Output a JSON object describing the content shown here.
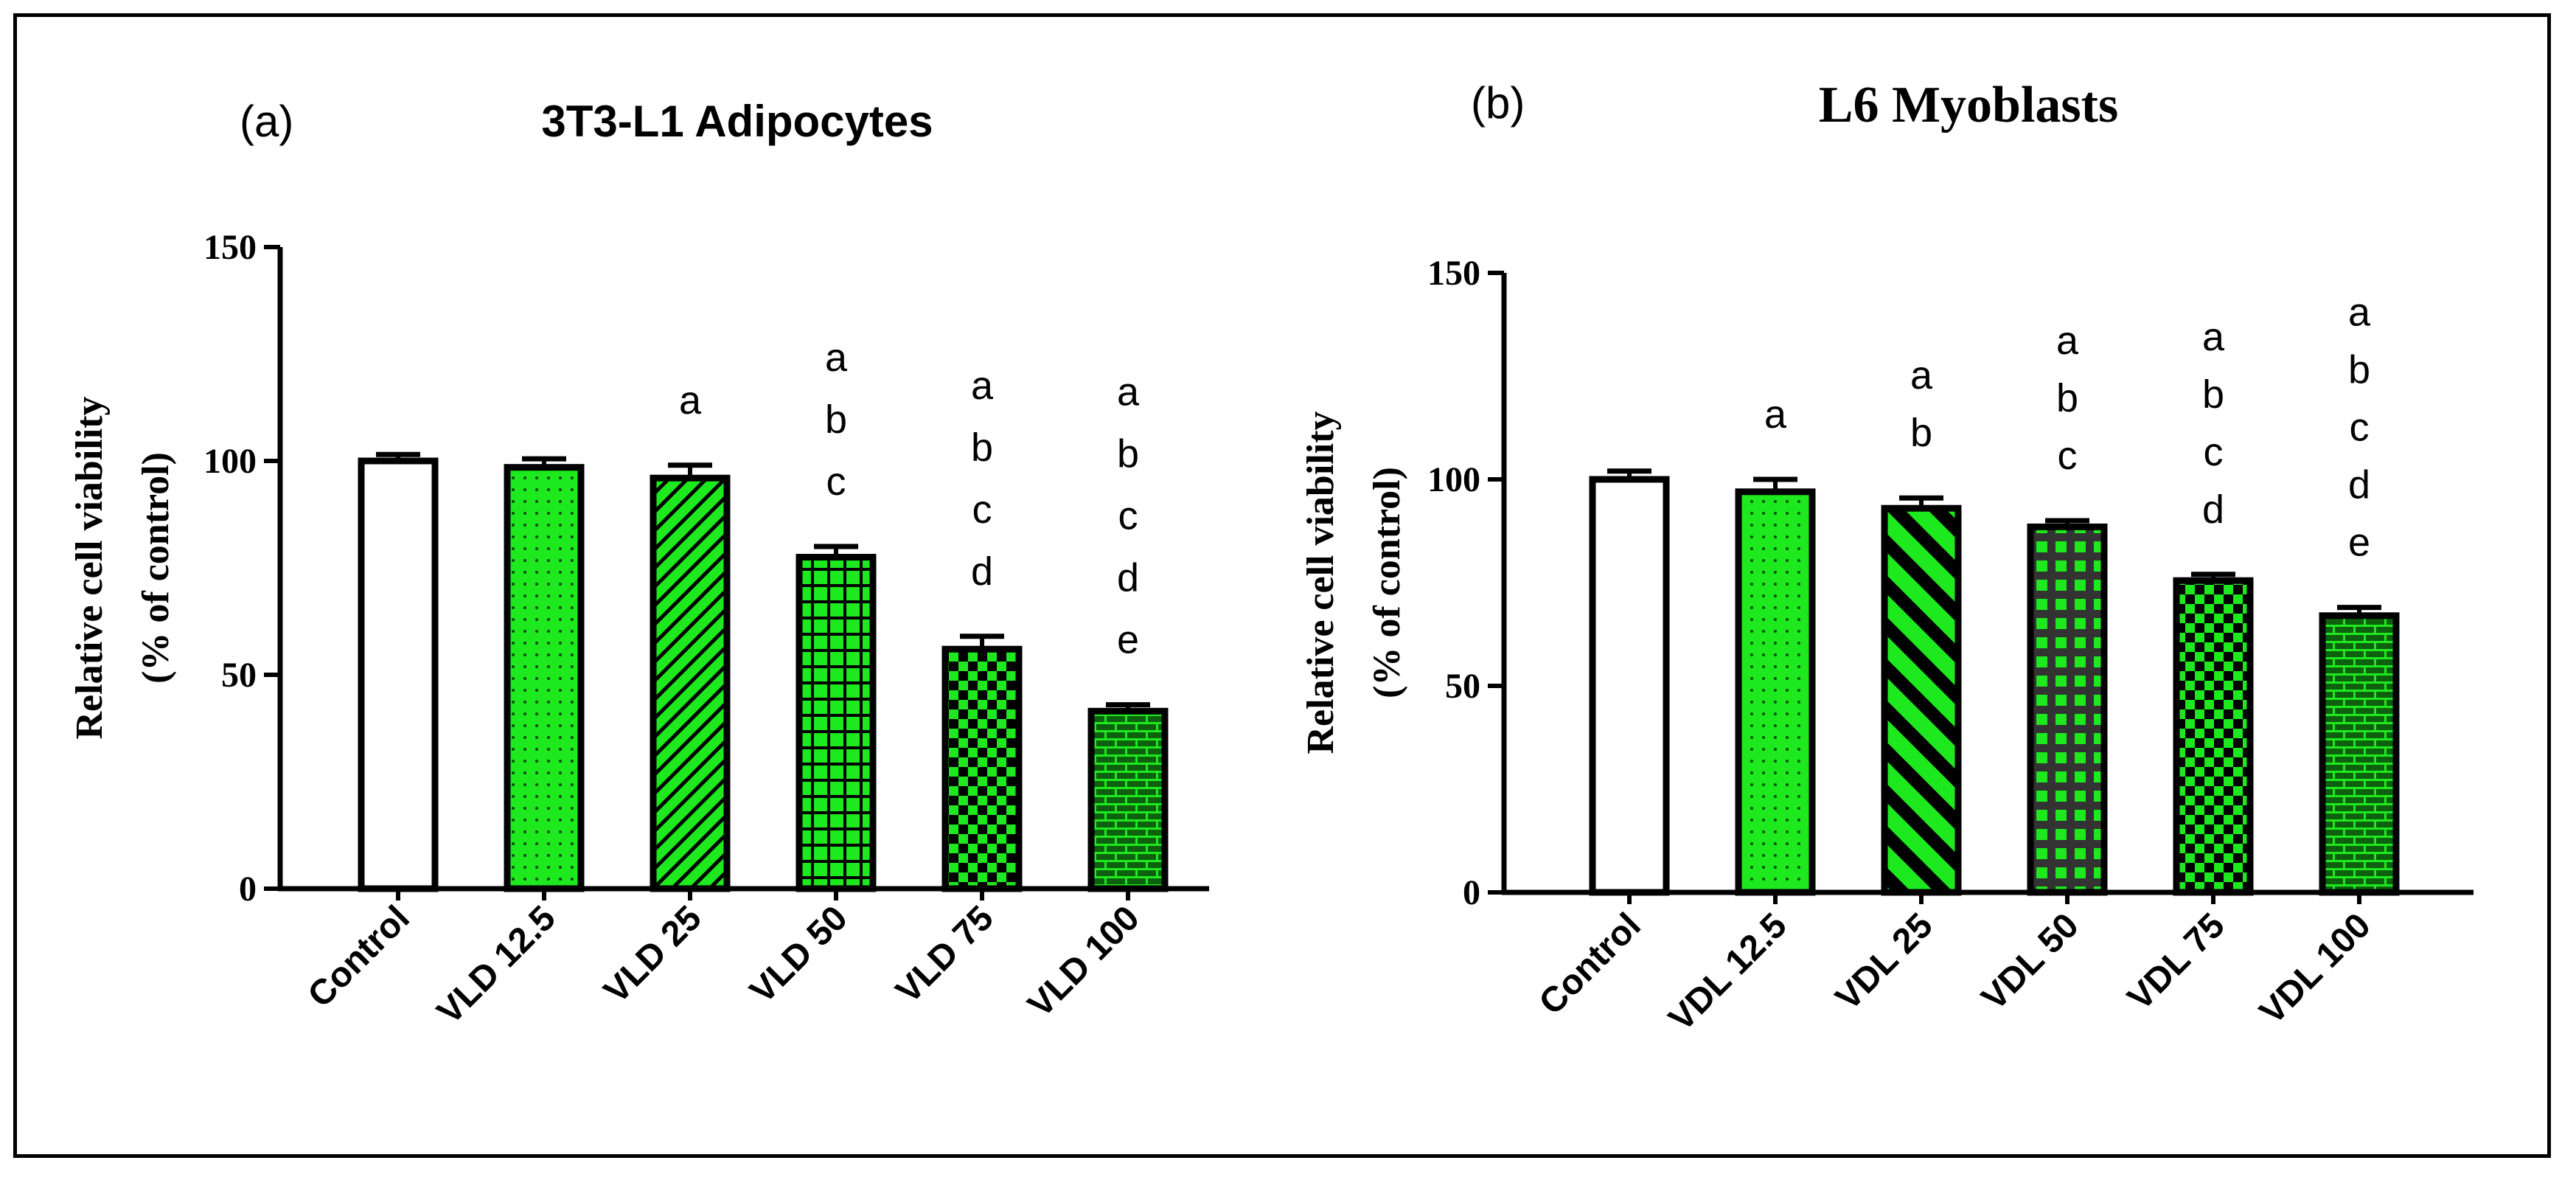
{
  "chart_data": [
    {
      "type": "bar",
      "panel_label": "(a)",
      "title": "3T3-L1 Adipocytes",
      "ylabel": [
        "Relative cell viability",
        "(% of control)"
      ],
      "xlabel": "",
      "ylim": [
        0,
        150
      ],
      "yticks": [
        "0",
        "50",
        "100",
        "150"
      ],
      "categories": [
        "Control",
        "VLD 12.5",
        "VLD 25",
        "VLD 50",
        "VLD 75",
        "VLD 100"
      ],
      "values": [
        100,
        98.5,
        96,
        77.5,
        56,
        41.5
      ],
      "errors": [
        1.5,
        2,
        3,
        2.5,
        3,
        1.5
      ],
      "significance": [
        [],
        [],
        [
          "a"
        ],
        [
          "a",
          "b",
          "c"
        ],
        [
          "a",
          "b",
          "c",
          "d"
        ],
        [
          "a",
          "b",
          "c",
          "d",
          "e"
        ]
      ],
      "patterns": [
        "none",
        "dots",
        "diagonal",
        "grid",
        "checker",
        "brick"
      ],
      "colors": {
        "fill": "#1ee81e",
        "edge": "#000000",
        "control": "#ffffff"
      }
    },
    {
      "type": "bar",
      "panel_label": "(b)",
      "title": "L6 Myoblasts",
      "ylabel": [
        "Relative cell viability",
        "(% of control)"
      ],
      "xlabel": "",
      "ylim": [
        0,
        150
      ],
      "yticks": [
        "0",
        "50",
        "100",
        "150"
      ],
      "categories": [
        "Control",
        "VDL 12.5",
        "VDL 25",
        "VDL 50",
        "VDL 75",
        "VDL 100"
      ],
      "values": [
        100,
        97,
        93,
        88.5,
        75.5,
        67
      ],
      "errors": [
        2,
        3,
        2.5,
        1.5,
        1.5,
        2
      ],
      "significance": [
        [],
        [
          "a"
        ],
        [
          "a",
          "b"
        ],
        [
          "a",
          "b",
          "c"
        ],
        [
          "a",
          "b",
          "c",
          "d"
        ],
        [
          "a",
          "b",
          "c",
          "d",
          "e"
        ]
      ],
      "patterns": [
        "none",
        "dots",
        "diagonal-thick",
        "grid-dark",
        "checker",
        "brick"
      ],
      "colors": {
        "fill": "#1ee81e",
        "edge": "#000000",
        "control": "#ffffff"
      }
    }
  ]
}
